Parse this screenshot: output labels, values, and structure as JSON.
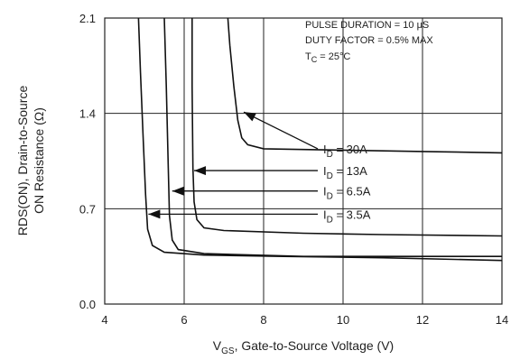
{
  "chart_data": {
    "type": "line",
    "xlabel": {
      "main": "V",
      "sub": "GS",
      "rest": ", Gate-to-Source Voltage (V)"
    },
    "ylabel": {
      "line1": "RDS(ON), Drain-to-Source",
      "line2": "ON Resistance (Ω)"
    },
    "xlim": [
      4,
      14
    ],
    "ylim": [
      0,
      2.1
    ],
    "xticks": [
      "4",
      "6",
      "8",
      "10",
      "12",
      "14"
    ],
    "yticks": [
      "0.0",
      "0.7",
      "1.4",
      "2.1"
    ],
    "grid": true,
    "notes": {
      "line1": "PULSE DURATION = 10 μS",
      "line2": "DUTY FACTOR = 0.5% MAX",
      "line3_main": "T",
      "line3_sub": "C",
      "line3_rest": " = 25°C"
    },
    "series": [
      {
        "name": "I_D = 30A",
        "label_sub": "D",
        "label_rest": " = 30A",
        "label_at": [
          9.5,
          1.14
        ],
        "arrow_to": [
          7.5,
          1.41
        ],
        "points": [
          [
            7.1,
            2.1
          ],
          [
            7.15,
            1.9
          ],
          [
            7.25,
            1.6
          ],
          [
            7.35,
            1.35
          ],
          [
            7.45,
            1.22
          ],
          [
            7.6,
            1.17
          ],
          [
            8.0,
            1.14
          ],
          [
            10,
            1.13
          ],
          [
            12,
            1.12
          ],
          [
            14,
            1.11
          ]
        ]
      },
      {
        "name": "I_D = 13A",
        "label_sub": "D",
        "label_rest": " = 13A",
        "label_at": [
          9.5,
          0.98
        ],
        "arrow_to": [
          6.25,
          0.98
        ],
        "points": [
          [
            6.2,
            2.1
          ],
          [
            6.2,
            1.6
          ],
          [
            6.22,
            1.0
          ],
          [
            6.25,
            0.75
          ],
          [
            6.32,
            0.62
          ],
          [
            6.5,
            0.56
          ],
          [
            7.0,
            0.54
          ],
          [
            9,
            0.52
          ],
          [
            11,
            0.51
          ],
          [
            14,
            0.5
          ]
        ]
      },
      {
        "name": "I_D = 6.5A",
        "label_sub": "D",
        "label_rest": " = 6.5A",
        "label_at": [
          9.5,
          0.83
        ],
        "arrow_to": [
          5.7,
          0.83
        ],
        "points": [
          [
            5.5,
            2.1
          ],
          [
            5.55,
            1.6
          ],
          [
            5.6,
            1.0
          ],
          [
            5.63,
            0.65
          ],
          [
            5.7,
            0.47
          ],
          [
            5.85,
            0.4
          ],
          [
            6.5,
            0.37
          ],
          [
            9,
            0.35
          ],
          [
            12,
            0.35
          ],
          [
            14,
            0.35
          ]
        ]
      },
      {
        "name": "I_D = 3.5A",
        "label_sub": "D",
        "label_rest": " = 3.5A",
        "label_at": [
          9.5,
          0.66
        ],
        "arrow_to": [
          5.1,
          0.66
        ],
        "points": [
          [
            4.85,
            2.1
          ],
          [
            4.9,
            1.7
          ],
          [
            4.97,
            1.2
          ],
          [
            5.03,
            0.8
          ],
          [
            5.08,
            0.55
          ],
          [
            5.2,
            0.43
          ],
          [
            5.5,
            0.38
          ],
          [
            6.5,
            0.36
          ],
          [
            8.5,
            0.35
          ],
          [
            11,
            0.34
          ],
          [
            14,
            0.32
          ]
        ]
      }
    ]
  }
}
